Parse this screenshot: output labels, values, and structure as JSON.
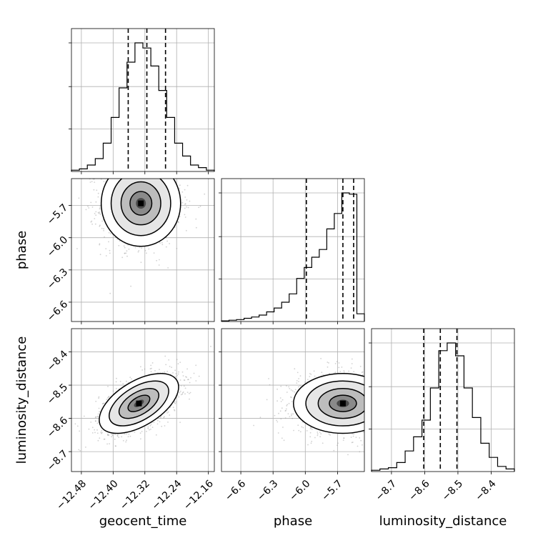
{
  "chart_data": {
    "type": "corner",
    "parameters": [
      "geocent_time",
      "phase",
      "luminosity_distance"
    ],
    "axis_labels": {
      "geocent_time": "geocent_time",
      "phase": "phase",
      "luminosity_distance": "luminosity_distance"
    },
    "ranges": {
      "geocent_time": [
        -12.505,
        -12.145
      ],
      "phase": [
        -6.78,
        -5.45
      ],
      "luminosity_distance": [
        -8.76,
        -8.33
      ]
    },
    "ticks": {
      "geocent_time": [
        -12.48,
        -12.4,
        -12.32,
        -12.24,
        -12.16
      ],
      "phase": [
        -6.6,
        -6.3,
        -6.0,
        -5.7
      ],
      "luminosity_distance": [
        -8.7,
        -8.6,
        -8.5,
        -8.4
      ]
    },
    "tick_labels": {
      "geocent_time": [
        "−12.48",
        "−12.40",
        "−12.32",
        "−12.24",
        "−12.16"
      ],
      "phase": [
        "−6.6",
        "−6.3",
        "−6.0",
        "−5.7"
      ],
      "luminosity_distance": [
        "−8.7",
        "−8.6",
        "−8.5",
        "−8.4"
      ]
    },
    "quantiles": {
      "geocent_time": [
        -12.362,
        -12.315,
        -12.268
      ],
      "phase": [
        -5.99,
        -5.65,
        -5.55
      ],
      "luminosity_distance": [
        -8.603,
        -8.553,
        -8.503
      ]
    },
    "histograms": {
      "geocent_time": [
        1,
        2,
        5,
        10,
        22,
        42,
        65,
        85,
        100,
        96,
        82,
        63,
        42,
        22,
        12,
        5,
        3,
        1
      ],
      "phase": [
        0.5,
        1,
        1.5,
        2.5,
        3.5,
        5,
        7.5,
        10.5,
        15,
        21.5,
        33.5,
        42,
        50,
        56,
        72,
        84,
        100,
        99,
        6
      ],
      "luminosity_distance": [
        1,
        2,
        3,
        7,
        16,
        27,
        40,
        65,
        94,
        100,
        90,
        65,
        42,
        22,
        11,
        4,
        2
      ]
    },
    "pairs": [
      {
        "x": "geocent_time",
        "y": "phase",
        "center": [
          -12.33,
          -5.68
        ],
        "sigma": [
          0.05,
          0.2
        ],
        "rho": 0.0
      },
      {
        "x": "geocent_time",
        "y": "luminosity_distance",
        "center": [
          -12.335,
          -8.555
        ],
        "sigma": [
          0.05,
          0.045
        ],
        "rho": 0.55
      },
      {
        "x": "phase",
        "y": "luminosity_distance",
        "center": [
          -5.65,
          -8.555
        ],
        "sigma": [
          0.23,
          0.045
        ],
        "rho": 0.0
      }
    ],
    "grid": true
  }
}
